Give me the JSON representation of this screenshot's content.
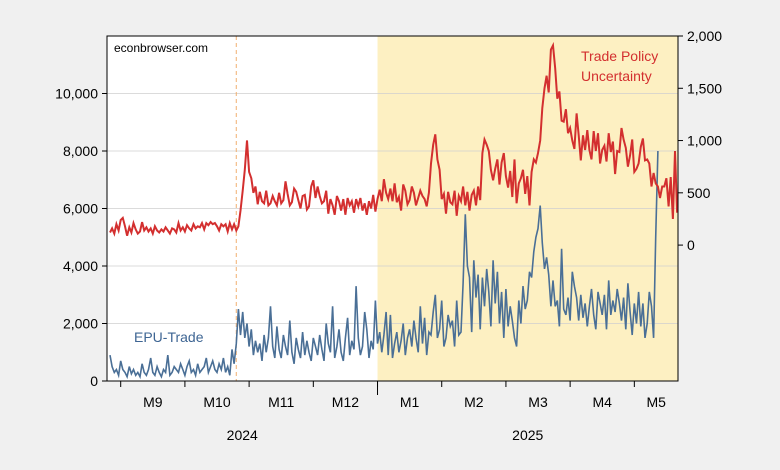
{
  "chart_data": {
    "type": "line",
    "source_label": "econbrowser.com",
    "left_axis": {
      "ylim": [
        0,
        12000
      ],
      "ticks": [
        0,
        2000,
        4000,
        6000,
        8000,
        10000
      ],
      "tick_labels": [
        "0",
        "2,000",
        "4,000",
        "6,000",
        "8,000",
        "10,000"
      ]
    },
    "right_axis": {
      "ylim": [
        -1300,
        2000
      ],
      "ticks": [
        0,
        500,
        1000,
        1500,
        2000
      ],
      "tick_labels": [
        "0",
        "500",
        "1,000",
        "1,500",
        "2,000"
      ]
    },
    "x_axis": {
      "months": [
        "M9",
        "M10",
        "M11",
        "M12",
        "M1",
        "M2",
        "M3",
        "M4",
        "M5"
      ],
      "years": [
        "2024",
        "2025"
      ],
      "month_start_index": [
        5,
        35,
        65,
        95,
        125,
        155,
        185,
        215,
        245
      ],
      "year_start_index": 125,
      "n_points": 265
    },
    "shading": {
      "from_index": 125,
      "to_index": 264,
      "color": "#fdf0c2"
    },
    "vline": {
      "index": 59,
      "color": "#f0b070"
    },
    "series": [
      {
        "name": "Trade Policy Uncertainty",
        "label_lines": [
          "Trade Policy",
          "Uncertainty"
        ],
        "axis": "right",
        "color": "#d32f2f",
        "values": [
          120,
          160,
          110,
          200,
          140,
          240,
          260,
          180,
          90,
          170,
          120,
          210,
          150,
          110,
          130,
          220,
          140,
          170,
          130,
          160,
          110,
          180,
          140,
          120,
          150,
          130,
          170,
          140,
          110,
          160,
          150,
          120,
          210,
          140,
          170,
          130,
          190,
          160,
          140,
          200,
          160,
          180,
          170,
          210,
          150,
          210,
          190,
          220,
          200,
          210,
          180,
          140,
          200,
          180,
          200,
          130,
          210,
          150,
          200,
          140,
          180,
          330,
          520,
          720,
          1000,
          700,
          640,
          500,
          560,
          390,
          510,
          420,
          400,
          520,
          380,
          400,
          470,
          420,
          380,
          500,
          400,
          430,
          610,
          490,
          380,
          410,
          540,
          510,
          430,
          350,
          470,
          480,
          340,
          370,
          560,
          620,
          450,
          560,
          470,
          400,
          420,
          520,
          300,
          440,
          380,
          290,
          470,
          420,
          330,
          440,
          290,
          450,
          380,
          420,
          310,
          440,
          370,
          450,
          330,
          400,
          290,
          420,
          350,
          480,
          320,
          440,
          530,
          420,
          630,
          500,
          440,
          540,
          420,
          590,
          410,
          460,
          330,
          580,
          520,
          390,
          430,
          560,
          500,
          380,
          450,
          520,
          470,
          440,
          370,
          500,
          780,
          960,
          1060,
          820,
          720,
          440,
          490,
          300,
          510,
          410,
          390,
          520,
          280,
          470,
          420,
          560,
          380,
          510,
          330,
          480,
          520,
          380,
          560,
          430,
          880,
          1010,
          960,
          900,
          720,
          620,
          730,
          820,
          580,
          790,
          880,
          660,
          550,
          710,
          460,
          820,
          400,
          590,
          640,
          720,
          490,
          660,
          380,
          700,
          820,
          790,
          880,
          1000,
          1310,
          1500,
          1620,
          1460,
          1870,
          1910,
          1690,
          1400,
          1470,
          1190,
          1180,
          1300,
          1070,
          1120,
          1000,
          920,
          1260,
          1050,
          810,
          1050,
          910,
          1100,
          910,
          820,
          1090,
          900,
          1070,
          780,
          910,
          950,
          800,
          1070,
          890,
          990,
          680,
          900,
          890,
          1120,
          1010,
          930,
          750,
          860,
          1010,
          700,
          730,
          780,
          940,
          1020,
          810,
          820,
          780,
          560,
          690,
          590,
          560,
          450,
          560,
          560,
          640,
          370,
          650,
          250,
          900,
          310
        ]
      },
      {
        "name": "EPU-Trade",
        "label_lines": [
          "EPU-Trade"
        ],
        "axis": "left",
        "color": "#4a6f96",
        "values": [
          900,
          500,
          300,
          400,
          200,
          700,
          400,
          300,
          150,
          500,
          250,
          400,
          200,
          300,
          150,
          600,
          300,
          200,
          400,
          800,
          300,
          200,
          500,
          300,
          150,
          400,
          300,
          900,
          200,
          300,
          500,
          400,
          300,
          600,
          400,
          200,
          500,
          700,
          300,
          400,
          200,
          600,
          300,
          400,
          500,
          800,
          300,
          500,
          700,
          400,
          300,
          600,
          400,
          800,
          300,
          500,
          200,
          1100,
          600,
          1300,
          2500,
          1600,
          2400,
          1500,
          2000,
          1200,
          1800,
          900,
          1400,
          1000,
          1300,
          700,
          1600,
          1000,
          1500,
          2600,
          1200,
          800,
          1900,
          1100,
          800,
          1600,
          1200,
          900,
          2100,
          1000,
          600,
          1500,
          1100,
          800,
          1700,
          900,
          1400,
          1000,
          700,
          1500,
          1200,
          900,
          1600,
          1100,
          700,
          2000,
          1300,
          1000,
          2600,
          800,
          1200,
          1800,
          1000,
          700,
          1500,
          2200,
          900,
          1400,
          1100,
          3300,
          1500,
          900,
          1200,
          2400,
          1800,
          800,
          1400,
          1100,
          2800,
          1300,
          1700,
          1000,
          1600,
          2400,
          900,
          2300,
          800,
          1300,
          1700,
          1000,
          1400,
          2000,
          900,
          1500,
          1800,
          1200,
          2100,
          1500,
          1000,
          2600,
          1300,
          2200,
          900,
          1700,
          1600,
          2400,
          3000,
          1500,
          1800,
          2800,
          1200,
          1500,
          2300,
          1900,
          2100,
          1200,
          2800,
          1600,
          1700,
          3400,
          5800,
          4000,
          3600,
          1700,
          4200,
          2900,
          3700,
          1800,
          3600,
          2600,
          3900,
          3100,
          1900,
          4200,
          2700,
          3800,
          2000,
          3100,
          1500,
          3200,
          1900,
          2600,
          2100,
          1500,
          1200,
          2800,
          2000,
          3300,
          2500,
          2800,
          3800,
          3600,
          4500,
          5000,
          5300,
          6100,
          4800,
          3900,
          4300,
          3700,
          2600,
          3500,
          2600,
          2800,
          1900,
          4600,
          2500,
          2300,
          2900,
          2100,
          3800,
          3300,
          2900,
          2100,
          3000,
          2200,
          2700,
          1900,
          2600,
          3200,
          2300,
          1800,
          3100,
          2700,
          2300,
          3000,
          1800,
          3500,
          2300,
          2800,
          2400,
          3200,
          2700,
          2100,
          2900,
          1800,
          3400,
          2400,
          1600,
          2700,
          2000,
          3100,
          1900,
          2700,
          1500,
          2000,
          3100,
          2600,
          1500,
          5000,
          8000
        ]
      }
    ]
  }
}
